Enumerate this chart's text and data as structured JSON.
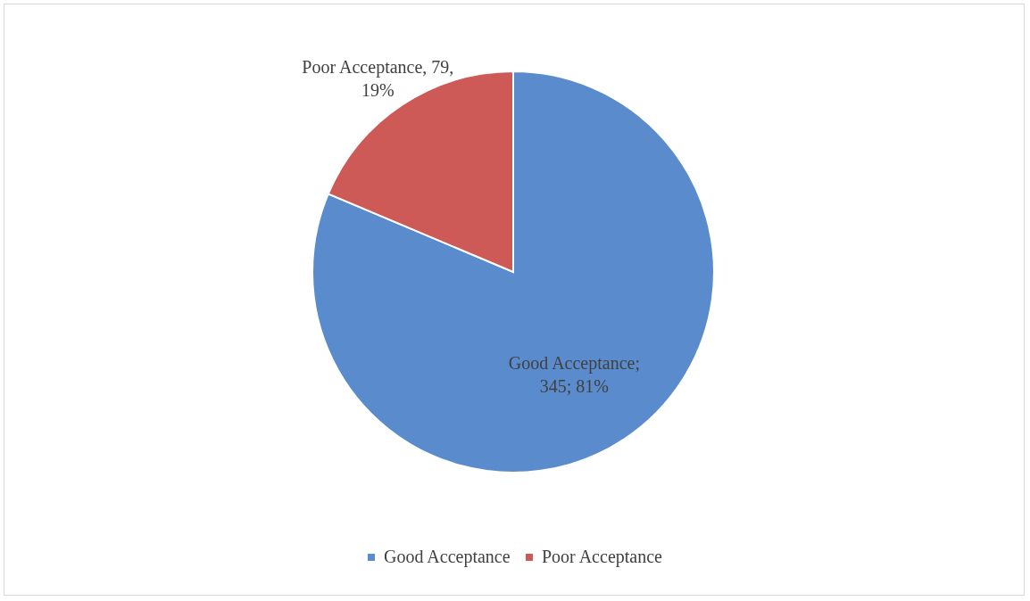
{
  "chart_data": {
    "type": "pie",
    "categories": [
      "Good Acceptance",
      "Poor Acceptance"
    ],
    "values": [
      345,
      79
    ],
    "colors": [
      "#5a8ccd",
      "#cd5a56"
    ],
    "value_labels": [
      "Good Acceptance; 345; 81%",
      "Poor Acceptance, 79, 19%"
    ],
    "legend": "bottom"
  }
}
